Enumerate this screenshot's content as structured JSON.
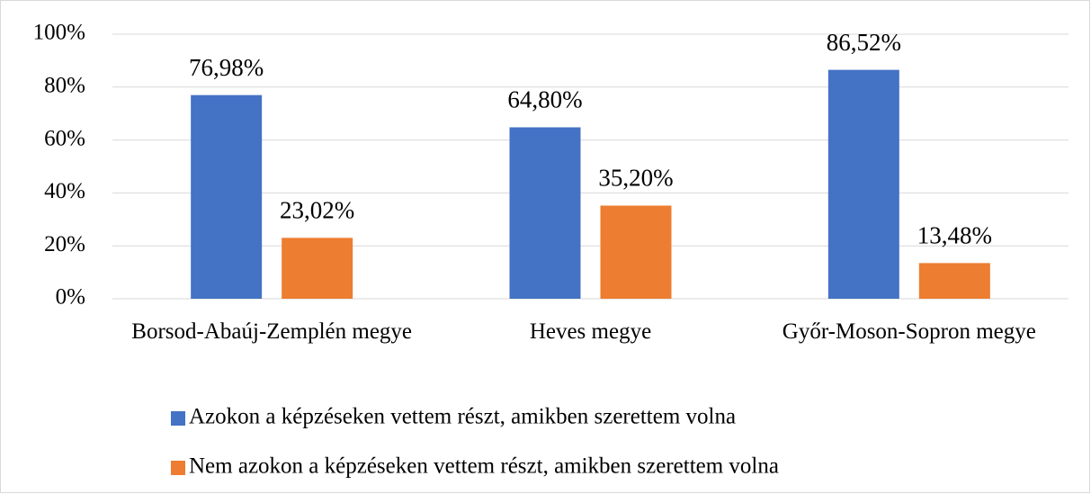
{
  "chart_data": {
    "type": "bar",
    "categories": [
      "Borsod-Abaúj-Zemplén megye",
      "Heves megye",
      "Győr-Moson-Sopron megye"
    ],
    "series": [
      {
        "name": "Azokon a képzéseken vettem részt, amikben szerettem volna",
        "color": "#4472c4",
        "values": [
          76.98,
          64.8,
          86.52
        ],
        "value_labels": [
          "76,98%",
          "64,80%",
          "86,52%"
        ]
      },
      {
        "name": "Nem azokon a képzéseken vettem részt, amikben szerettem volna",
        "color": "#ed7d31",
        "values": [
          23.02,
          35.2,
          13.48
        ],
        "value_labels": [
          "23,02%",
          "35,20%",
          "13,48%"
        ]
      }
    ],
    "ylim": [
      0,
      100
    ],
    "yticks": [
      {
        "value": 0,
        "label": "0%"
      },
      {
        "value": 20,
        "label": "20%"
      },
      {
        "value": 40,
        "label": "40%"
      },
      {
        "value": 60,
        "label": "60%"
      },
      {
        "value": 80,
        "label": "80%"
      },
      {
        "value": 100,
        "label": "100%"
      }
    ],
    "grid": true,
    "legend": "bottom"
  }
}
